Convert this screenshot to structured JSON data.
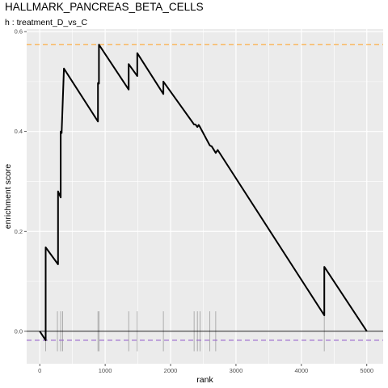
{
  "chart_data": {
    "type": "line",
    "title": "HALLMARK_PANCREAS_BETA_CELLS",
    "subtitle": "h : treatment_D_vs_C",
    "xlabel": "rank",
    "ylabel": "enrichment score",
    "xlim": [
      -200,
      5250
    ],
    "ylim": [
      -0.065,
      0.605
    ],
    "x_ticks": [
      0,
      1000,
      2000,
      3000,
      4000,
      5000
    ],
    "x_tick_labels": [
      "0",
      "1000",
      "2000",
      "3000",
      "4000",
      "5000"
    ],
    "y_ticks": [
      0,
      0.2,
      0.4,
      0.6
    ],
    "y_tick_labels": [
      "0.0",
      "0.2",
      "0.4",
      "0.6"
    ],
    "grid": true,
    "background": "#ebebeb",
    "series": [
      {
        "color": "#000000",
        "x": [
          0,
          90,
          90,
          280,
          280,
          320,
          320,
          335,
          335,
          370,
          370,
          890,
          890,
          905,
          905,
          1360,
          1360,
          1490,
          1490,
          1890,
          1890,
          2360,
          2380,
          2410,
          2430,
          2450,
          2600,
          2630,
          2690,
          2720,
          4350,
          4350,
          5000
        ],
        "y": [
          0,
          -0.018,
          0.168,
          0.134,
          0.28,
          0.268,
          0.4,
          0.397,
          0.4,
          0.526,
          0.526,
          0.42,
          0.497,
          0.496,
          0.574,
          0.484,
          0.535,
          0.511,
          0.557,
          0.475,
          0.5,
          0.414,
          0.414,
          0.409,
          0.413,
          0.409,
          0.372,
          0.37,
          0.357,
          0.363,
          0.032,
          0.129,
          0
        ]
      }
    ],
    "rug_ranks": [
      90,
      270,
      320,
      350,
      890,
      905,
      1360,
      1490,
      1890,
      2360,
      2410,
      2450,
      2600,
      2690,
      4350
    ],
    "reference_lines": [
      {
        "y": 0.574,
        "color": "#ffa733",
        "style": "dashed"
      },
      {
        "y": -0.018,
        "color": "#9966cc",
        "style": "dashed"
      },
      {
        "y": 0,
        "color": "#000000",
        "style": "solid"
      }
    ]
  }
}
